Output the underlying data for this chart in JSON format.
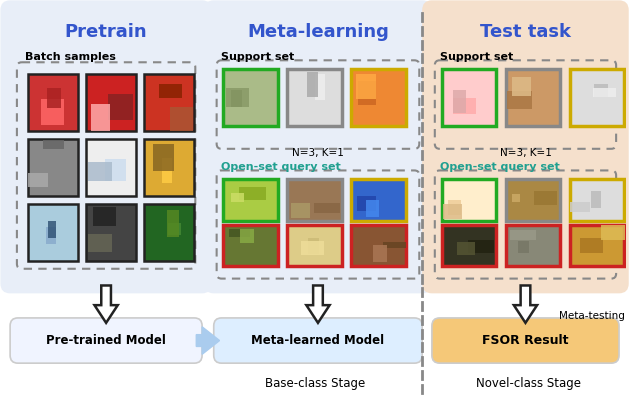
{
  "fig_bg": "#ffffff",
  "panel_pretrain_color": "#e8eef8",
  "panel_meta_color": "#e8eef8",
  "panel_test_color": "#f5e0cc",
  "title_color": "#3355cc",
  "open_set_color": "#20a090",
  "border_black": "#222222",
  "border_green": "#22aa22",
  "border_gray": "#888888",
  "border_gold": "#ccaa00",
  "border_red": "#cc2222",
  "separator_color": "#888888",
  "arrow_fill": "#ffffff",
  "arrow_edge": "#222222",
  "model_pretrain_color": "#f0f4ff",
  "model_meta_color": "#ddeeff",
  "model_fsor_color": "#f5c878",
  "pretrain_title": "Pretrain",
  "meta_title": "Meta-learning",
  "test_title": "Test task",
  "batch_label": "Batch samples",
  "support_label": "Support set",
  "openset_label": "Open-set query set",
  "nk_label": "N=3, K=1",
  "pretrain_model_label": "Pre-trained Model",
  "meta_model_label": "Meta-learned Model",
  "fsor_label": "FSOR Result",
  "base_label": "Base-class Stage",
  "novel_label": "Novel-class Stage",
  "meta_testing_label": "Meta-testing"
}
